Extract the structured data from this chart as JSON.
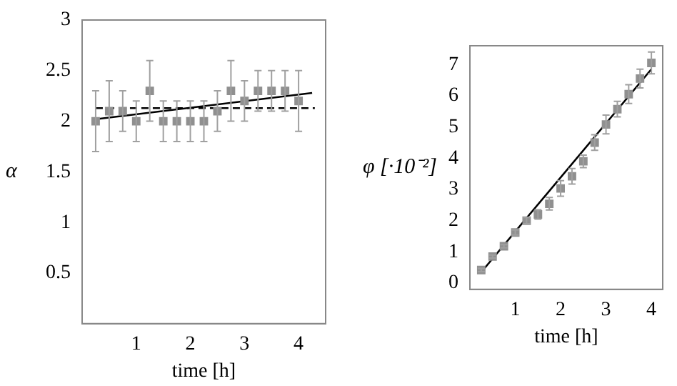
{
  "chart_data": [
    {
      "type": "scatter",
      "xlabel": "time [h]",
      "ylabel": "α",
      "grid": false,
      "legend": false,
      "x": [
        0.25,
        0.5,
        0.75,
        1.0,
        1.25,
        1.5,
        1.75,
        2.0,
        2.25,
        2.5,
        2.75,
        3.0,
        3.25,
        3.5,
        3.75,
        4.0
      ],
      "xlim": [
        0,
        4.5
      ],
      "xticks": [
        1,
        2,
        3,
        4
      ],
      "ylim": [
        0,
        3
      ],
      "yticks": [
        0.5,
        1,
        1.5,
        2,
        2.5,
        3
      ],
      "series": [
        {
          "marker": "square",
          "color": "#909090",
          "values": [
            2.0,
            2.1,
            2.1,
            2.0,
            2.3,
            2.0,
            2.0,
            2.0,
            2.0,
            2.1,
            2.3,
            2.2,
            2.3,
            2.3,
            2.3,
            2.2
          ],
          "errors": [
            0.3,
            0.3,
            0.2,
            0.2,
            0.3,
            0.2,
            0.2,
            0.2,
            0.2,
            0.2,
            0.3,
            0.2,
            0.2,
            0.2,
            0.2,
            0.3
          ]
        },
        {
          "type": "line",
          "color": "#000000",
          "x": [
            0.25,
            4.25
          ],
          "values": [
            2.02,
            2.28
          ],
          "line_style": "solid"
        },
        {
          "type": "line",
          "color": "#000000",
          "x": [
            0.25,
            4.3
          ],
          "values": [
            2.13,
            2.13
          ],
          "line_style": "dashed"
        }
      ]
    },
    {
      "type": "scatter",
      "xlabel": "time [h]",
      "ylabel": "φ [·10⁻²]",
      "grid": false,
      "legend": false,
      "x": [
        0.25,
        0.5,
        0.75,
        1.0,
        1.25,
        1.5,
        1.75,
        2.0,
        2.25,
        2.5,
        2.75,
        3.0,
        3.25,
        3.5,
        3.75,
        4.0
      ],
      "xlim": [
        0,
        4.25
      ],
      "xticks": [
        1,
        2,
        3,
        4
      ],
      "ylim": [
        -0.2,
        7.6
      ],
      "yticks": [
        0,
        1,
        2,
        3,
        4,
        5,
        6,
        7
      ],
      "series": [
        {
          "marker": "square",
          "color": "#909090",
          "values": [
            0.42,
            0.85,
            1.18,
            1.62,
            2.0,
            2.2,
            2.54,
            3.03,
            3.42,
            3.9,
            4.5,
            5.08,
            5.57,
            6.05,
            6.55,
            7.05
          ],
          "errors": [
            0.05,
            0.05,
            0.05,
            0.08,
            0.1,
            0.15,
            0.2,
            0.25,
            0.25,
            0.2,
            0.25,
            0.3,
            0.25,
            0.3,
            0.3,
            0.35
          ]
        },
        {
          "type": "line",
          "color": "#000000",
          "x": [
            0.25,
            4.0
          ],
          "values": [
            0.35,
            6.85
          ],
          "line_style": "solid"
        }
      ]
    }
  ]
}
